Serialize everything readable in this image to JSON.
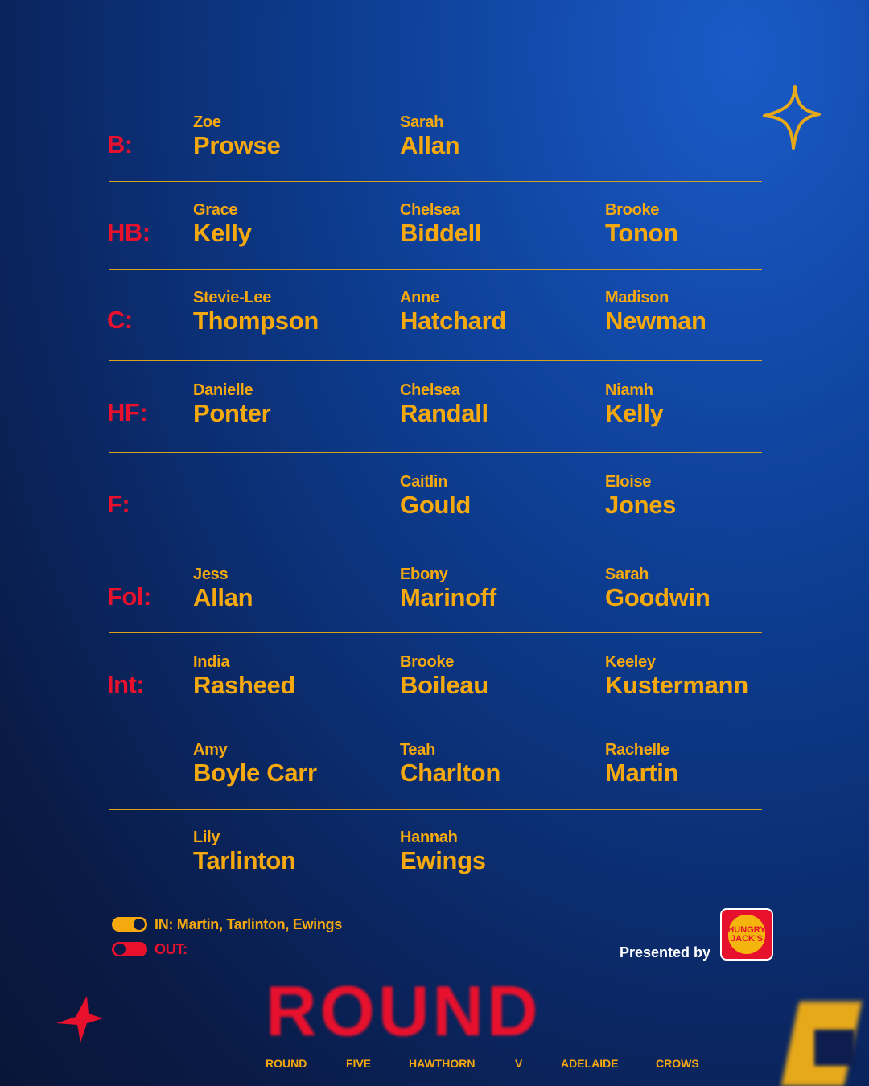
{
  "lineup": [
    {
      "position": "B:",
      "players": [
        {
          "first": "Zoe",
          "last": "Prowse"
        },
        {
          "first": "Sarah",
          "last": "Allan"
        },
        null
      ]
    },
    {
      "position": "HB:",
      "players": [
        {
          "first": "Grace",
          "last": "Kelly"
        },
        {
          "first": "Chelsea",
          "last": "Biddell"
        },
        {
          "first": "Brooke",
          "last": "Tonon"
        }
      ]
    },
    {
      "position": "C:",
      "players": [
        {
          "first": "Stevie-Lee",
          "last": "Thompson"
        },
        {
          "first": "Anne",
          "last": "Hatchard"
        },
        {
          "first": "Madison",
          "last": "Newman"
        }
      ]
    },
    {
      "position": "HF:",
      "players": [
        {
          "first": "Danielle",
          "last": "Ponter"
        },
        {
          "first": "Chelsea",
          "last": "Randall"
        },
        {
          "first": "Niamh",
          "last": "Kelly"
        }
      ]
    },
    {
      "position": "F:",
      "players": [
        null,
        {
          "first": "Caitlin",
          "last": "Gould"
        },
        {
          "first": "Eloise",
          "last": "Jones"
        }
      ]
    },
    {
      "position": "Fol:",
      "players": [
        {
          "first": "Jess",
          "last": "Allan"
        },
        {
          "first": "Ebony",
          "last": "Marinoff"
        },
        {
          "first": "Sarah",
          "last": "Goodwin"
        }
      ]
    },
    {
      "position": "Int:",
      "players": [
        {
          "first": "India",
          "last": "Rasheed"
        },
        {
          "first": "Brooke",
          "last": "Boileau"
        },
        {
          "first": "Keeley",
          "last": "Kustermann"
        }
      ]
    },
    {
      "position": "",
      "players": [
        {
          "first": "Amy",
          "last": "Boyle Carr"
        },
        {
          "first": "Teah",
          "last": "Charlton"
        },
        {
          "first": "Rachelle",
          "last": "Martin"
        }
      ]
    },
    {
      "position": "",
      "players": [
        {
          "first": "Lily",
          "last": "Tarlinton"
        },
        {
          "first": "Hannah",
          "last": "Ewings"
        },
        null
      ]
    }
  ],
  "changes": {
    "in": "IN: Martin, Tarlinton, Ewings",
    "out": "OUT:"
  },
  "sponsor": {
    "label": "Presented by",
    "logo_text": "HUNGRY JACK'S"
  },
  "big_word": "ROUND",
  "footer": [
    "ROUND",
    "FIVE",
    "HAWTHORN",
    "V",
    "ADELAIDE",
    "CROWS"
  ],
  "colors": {
    "accent": "#f5a90f",
    "position": "#e8112d",
    "background": "#0d3f95"
  },
  "icons": [
    "sparkle-icon",
    "star-icon",
    "toggle-on-icon",
    "toggle-off-icon"
  ]
}
